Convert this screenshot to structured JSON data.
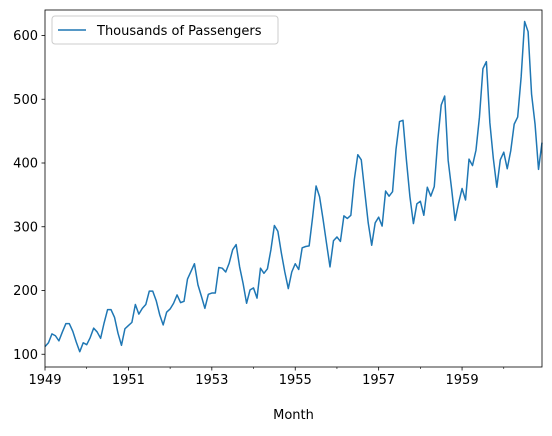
{
  "chart_data": {
    "type": "line",
    "title": "",
    "xlabel": "Month",
    "ylabel": "",
    "x_start": "1949-01",
    "x_end": "1960-12",
    "xlim": [
      "1949-01",
      "1960-12"
    ],
    "ylim": [
      80,
      640
    ],
    "x_ticks": [
      "1949",
      "1951",
      "1953",
      "1955",
      "1957",
      "1959"
    ],
    "y_ticks": [
      100,
      200,
      300,
      400,
      500,
      600
    ],
    "grid": false,
    "legend_position": "upper-left",
    "series": [
      {
        "name": "Thousands of Passengers",
        "color": "#1f77b4",
        "values": [
          112,
          118,
          132,
          129,
          121,
          135,
          148,
          148,
          136,
          119,
          104,
          118,
          115,
          126,
          141,
          135,
          125,
          149,
          170,
          170,
          158,
          133,
          114,
          140,
          145,
          150,
          178,
          163,
          172,
          178,
          199,
          199,
          184,
          162,
          146,
          166,
          171,
          180,
          193,
          181,
          183,
          218,
          230,
          242,
          209,
          191,
          172,
          194,
          196,
          196,
          236,
          235,
          229,
          243,
          264,
          272,
          237,
          211,
          180,
          201,
          204,
          188,
          235,
          227,
          234,
          264,
          302,
          293,
          259,
          229,
          203,
          229,
          242,
          233,
          267,
          269,
          270,
          315,
          364,
          347,
          312,
          274,
          237,
          278,
          284,
          277,
          317,
          313,
          318,
          374,
          413,
          405,
          355,
          306,
          271,
          306,
          315,
          301,
          356,
          348,
          355,
          422,
          465,
          467,
          404,
          347,
          305,
          336,
          340,
          318,
          362,
          348,
          363,
          435,
          491,
          505,
          404,
          359,
          310,
          337,
          360,
          342,
          406,
          396,
          420,
          472,
          548,
          559,
          463,
          407,
          362,
          405,
          417,
          391,
          419,
          461,
          472,
          535,
          622,
          606,
          508,
          461,
          390,
          432
        ]
      }
    ]
  }
}
